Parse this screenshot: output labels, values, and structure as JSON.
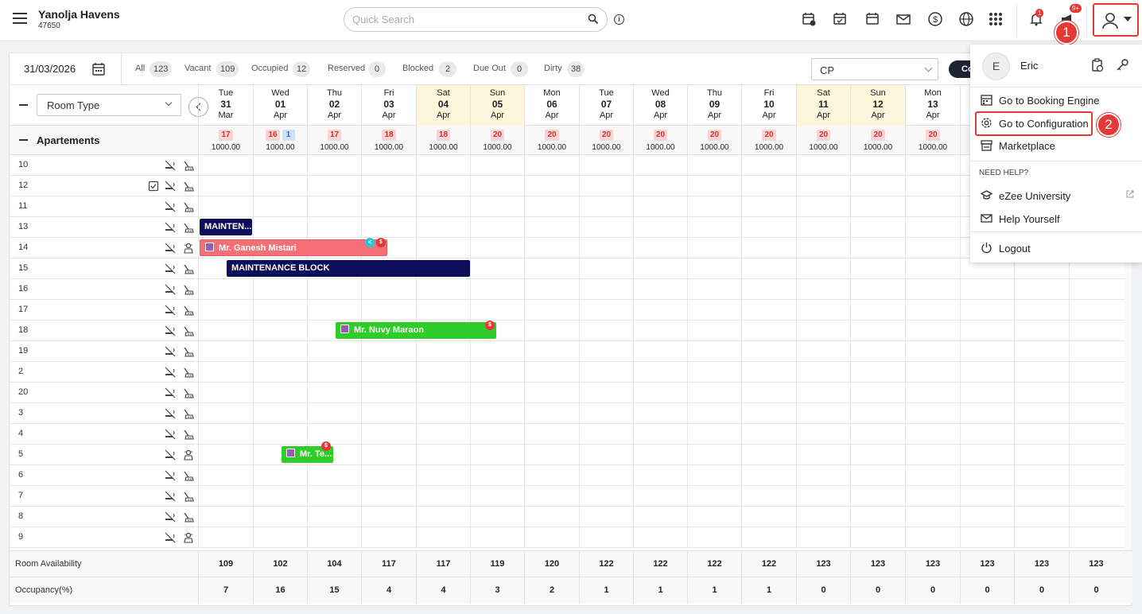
{
  "header": {
    "hotel_name": "Yanolja Havens",
    "hotel_code": "47650",
    "search_placeholder": "Quick Search",
    "notif_badge": "1",
    "announce_badge": "9+"
  },
  "annotations": {
    "step1": "1",
    "step2": "2"
  },
  "filters": {
    "date": "31/03/2026",
    "items": [
      {
        "label": "All",
        "count": "123"
      },
      {
        "label": "Vacant",
        "count": "109"
      },
      {
        "label": "Occupied",
        "count": "12"
      },
      {
        "label": "Reserved",
        "count": "0"
      },
      {
        "label": "Blocked",
        "count": "2"
      },
      {
        "label": "Due Out",
        "count": "0"
      },
      {
        "label": "Dirty",
        "count": "38"
      }
    ],
    "rate_plan": "CP",
    "action_button": "Co"
  },
  "grid_header": {
    "room_type_select": "Room Type"
  },
  "dates": [
    {
      "dow": "Tue",
      "day": "31",
      "mon": "Mar",
      "weekend": false
    },
    {
      "dow": "Wed",
      "day": "01",
      "mon": "Apr",
      "weekend": false
    },
    {
      "dow": "Thu",
      "day": "02",
      "mon": "Apr",
      "weekend": false
    },
    {
      "dow": "Fri",
      "day": "03",
      "mon": "Apr",
      "weekend": false
    },
    {
      "dow": "Sat",
      "day": "04",
      "mon": "Apr",
      "weekend": true
    },
    {
      "dow": "Sun",
      "day": "05",
      "mon": "Apr",
      "weekend": true
    },
    {
      "dow": "Mon",
      "day": "06",
      "mon": "Apr",
      "weekend": false
    },
    {
      "dow": "Tue",
      "day": "07",
      "mon": "Apr",
      "weekend": false
    },
    {
      "dow": "Wed",
      "day": "08",
      "mon": "Apr",
      "weekend": false
    },
    {
      "dow": "Thu",
      "day": "09",
      "mon": "Apr",
      "weekend": false
    },
    {
      "dow": "Fri",
      "day": "10",
      "mon": "Apr",
      "weekend": false
    },
    {
      "dow": "Sat",
      "day": "11",
      "mon": "Apr",
      "weekend": true
    },
    {
      "dow": "Sun",
      "day": "12",
      "mon": "Apr",
      "weekend": true
    },
    {
      "dow": "Mon",
      "day": "13",
      "mon": "Apr",
      "weekend": false
    },
    {
      "dow": "",
      "day": "",
      "mon": "",
      "weekend": false
    },
    {
      "dow": "",
      "day": "",
      "mon": "",
      "weekend": false
    },
    {
      "dow": "",
      "day": "",
      "mon": "",
      "weekend": false
    }
  ],
  "category": {
    "name": "Apartements",
    "cells": [
      {
        "count": "17",
        "extra": "",
        "price": "1000.00"
      },
      {
        "count": "16",
        "extra": "1",
        "price": "1000.00"
      },
      {
        "count": "17",
        "extra": "",
        "price": "1000.00"
      },
      {
        "count": "18",
        "extra": "",
        "price": "1000.00"
      },
      {
        "count": "18",
        "extra": "",
        "price": "1000.00"
      },
      {
        "count": "20",
        "extra": "",
        "price": "1000.00"
      },
      {
        "count": "20",
        "extra": "",
        "price": "1000.00"
      },
      {
        "count": "20",
        "extra": "",
        "price": "1000.00"
      },
      {
        "count": "20",
        "extra": "",
        "price": "1000.00"
      },
      {
        "count": "20",
        "extra": "",
        "price": "1000.00"
      },
      {
        "count": "20",
        "extra": "",
        "price": "1000.00"
      },
      {
        "count": "20",
        "extra": "",
        "price": "1000.00"
      },
      {
        "count": "20",
        "extra": "",
        "price": "1000.00"
      },
      {
        "count": "20",
        "extra": "",
        "price": "1000.00"
      }
    ]
  },
  "rooms": [
    {
      "number": "10",
      "checked": false,
      "guest_icon": false
    },
    {
      "number": "12",
      "checked": true,
      "guest_icon": false
    },
    {
      "number": "11",
      "checked": false,
      "guest_icon": false
    },
    {
      "number": "13",
      "checked": false,
      "guest_icon": false
    },
    {
      "number": "14",
      "checked": false,
      "guest_icon": true
    },
    {
      "number": "15",
      "checked": false,
      "guest_icon": false
    },
    {
      "number": "16",
      "checked": false,
      "guest_icon": false
    },
    {
      "number": "17",
      "checked": false,
      "guest_icon": false
    },
    {
      "number": "18",
      "checked": false,
      "guest_icon": false
    },
    {
      "number": "19",
      "checked": false,
      "guest_icon": false
    },
    {
      "number": "2",
      "checked": false,
      "guest_icon": false
    },
    {
      "number": "20",
      "checked": false,
      "guest_icon": false
    },
    {
      "number": "3",
      "checked": false,
      "guest_icon": false
    },
    {
      "number": "4",
      "checked": false,
      "guest_icon": false
    },
    {
      "number": "5",
      "checked": false,
      "guest_icon": true
    },
    {
      "number": "6",
      "checked": false,
      "guest_icon": false
    },
    {
      "number": "7",
      "checked": false,
      "guest_icon": false
    },
    {
      "number": "8",
      "checked": false,
      "guest_icon": false
    },
    {
      "number": "9",
      "checked": false,
      "guest_icon": true
    }
  ],
  "bookings": [
    {
      "label": "MAINTEN...",
      "kind": "maintenance"
    },
    {
      "label": "Mr. Ganesh Mistari",
      "kind": "red"
    },
    {
      "label": "MAINTENANCE BLOCK",
      "kind": "maintenance"
    },
    {
      "label": "Mr. Nuvy Maraon",
      "kind": "green"
    },
    {
      "label": "Mr. Te...",
      "kind": "green"
    }
  ],
  "footer": {
    "availability_label": "Room Availability",
    "availability": [
      "109",
      "102",
      "104",
      "117",
      "117",
      "119",
      "120",
      "122",
      "122",
      "122",
      "122",
      "123",
      "123",
      "123",
      "123",
      "123",
      "123"
    ],
    "occupancy_label": "Occupancy(%)",
    "occupancy": [
      "7",
      "16",
      "15",
      "4",
      "4",
      "3",
      "2",
      "1",
      "1",
      "1",
      "1",
      "0",
      "0",
      "0",
      "0",
      "0",
      "0"
    ]
  },
  "user_menu": {
    "avatar_letter": "E",
    "user_name": "Eric",
    "booking_engine": "Go to Booking Engine",
    "configuration": "Go to Configuration",
    "marketplace": "Marketplace",
    "help_header": "NEED HELP?",
    "university": "eZee University",
    "help_yourself": "Help Yourself",
    "logout": "Logout"
  }
}
